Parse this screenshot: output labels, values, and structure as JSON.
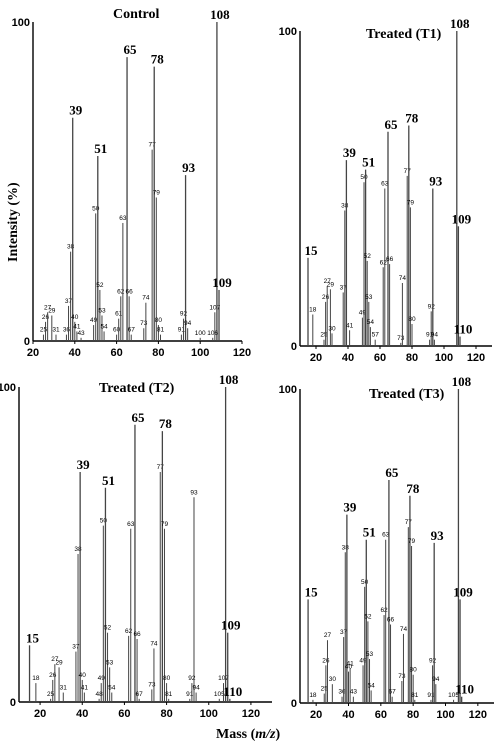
{
  "figure": {
    "ylabel": "Intensity (%)",
    "xlabel": "Mass (m/z)",
    "xlabel_main": "Mass (",
    "xlabel_italic": "m/z",
    "xlabel_close": ")"
  },
  "chart_data": [
    {
      "type": "bar",
      "title": "Control",
      "xlim": [
        20,
        120
      ],
      "ylim": [
        0,
        100
      ],
      "xticks": [
        20,
        40,
        60,
        80,
        100,
        120
      ],
      "yticks": [
        0,
        100
      ],
      "peaks": [
        {
          "mz": 25,
          "intensity": 2,
          "label": "25"
        },
        {
          "mz": 26,
          "intensity": 6,
          "label": "26"
        },
        {
          "mz": 27,
          "intensity": 9,
          "label": "27"
        },
        {
          "mz": 29,
          "intensity": 8,
          "label": "29"
        },
        {
          "mz": 31,
          "intensity": 2,
          "label": "31"
        },
        {
          "mz": 36,
          "intensity": 2,
          "label": "36"
        },
        {
          "mz": 37,
          "intensity": 11,
          "label": "37"
        },
        {
          "mz": 38,
          "intensity": 28,
          "label": "38"
        },
        {
          "mz": 39,
          "intensity": 70,
          "label": "39",
          "major": true
        },
        {
          "mz": 40,
          "intensity": 6,
          "label": "40"
        },
        {
          "mz": 41,
          "intensity": 3,
          "label": "41"
        },
        {
          "mz": 43,
          "intensity": 1,
          "label": "43"
        },
        {
          "mz": 49,
          "intensity": 5,
          "label": "49"
        },
        {
          "mz": 50,
          "intensity": 40,
          "label": "50"
        },
        {
          "mz": 51,
          "intensity": 58,
          "label": "51",
          "major": true
        },
        {
          "mz": 52,
          "intensity": 16,
          "label": "52"
        },
        {
          "mz": 53,
          "intensity": 8,
          "label": "53"
        },
        {
          "mz": 54,
          "intensity": 3,
          "label": "54"
        },
        {
          "mz": 60,
          "intensity": 2,
          "label": "60"
        },
        {
          "mz": 61,
          "intensity": 7,
          "label": "61"
        },
        {
          "mz": 62,
          "intensity": 14,
          "label": "62"
        },
        {
          "mz": 63,
          "intensity": 37,
          "label": "63"
        },
        {
          "mz": 65,
          "intensity": 89,
          "label": "65",
          "major": true
        },
        {
          "mz": 66,
          "intensity": 14,
          "label": "66"
        },
        {
          "mz": 67,
          "intensity": 2,
          "label": "67"
        },
        {
          "mz": 73,
          "intensity": 4,
          "label": "73"
        },
        {
          "mz": 74,
          "intensity": 12,
          "label": "74"
        },
        {
          "mz": 77,
          "intensity": 60,
          "label": "77"
        },
        {
          "mz": 78,
          "intensity": 86,
          "label": "78",
          "major": true
        },
        {
          "mz": 79,
          "intensity": 45,
          "label": "79"
        },
        {
          "mz": 80,
          "intensity": 5,
          "label": "80"
        },
        {
          "mz": 81,
          "intensity": 2,
          "label": "81"
        },
        {
          "mz": 91,
          "intensity": 2,
          "label": "91"
        },
        {
          "mz": 92,
          "intensity": 7,
          "label": "92"
        },
        {
          "mz": 93,
          "intensity": 52,
          "label": "93",
          "major": true
        },
        {
          "mz": 94,
          "intensity": 4,
          "label": "94"
        },
        {
          "mz": 100,
          "intensity": 1,
          "label": "100"
        },
        {
          "mz": 107,
          "intensity": 9,
          "label": "107"
        },
        {
          "mz": 108,
          "intensity": 100,
          "label": "108",
          "major": true
        },
        {
          "mz": 109,
          "intensity": 16,
          "label": "109",
          "major": true
        },
        {
          "mz": 106,
          "intensity": 1,
          "label": "106"
        }
      ]
    },
    {
      "type": "bar",
      "title": "Treated (T1)",
      "xlim": [
        10,
        130
      ],
      "ylim": [
        0,
        100
      ],
      "xticks": [
        20,
        40,
        60,
        80,
        100,
        120
      ],
      "yticks": [
        0,
        100
      ],
      "peaks": [
        {
          "mz": 15,
          "intensity": 28,
          "label": "15",
          "major": true
        },
        {
          "mz": 18,
          "intensity": 10,
          "label": "18"
        },
        {
          "mz": 25,
          "intensity": 2,
          "label": "25"
        },
        {
          "mz": 26,
          "intensity": 14,
          "label": "26"
        },
        {
          "mz": 27,
          "intensity": 19,
          "label": "27"
        },
        {
          "mz": 29,
          "intensity": 18,
          "label": "29"
        },
        {
          "mz": 30,
          "intensity": 4,
          "label": "30"
        },
        {
          "mz": 37,
          "intensity": 17,
          "label": "37"
        },
        {
          "mz": 38,
          "intensity": 43,
          "label": "38"
        },
        {
          "mz": 39,
          "intensity": 59,
          "label": "39",
          "major": true
        },
        {
          "mz": 41,
          "intensity": 5,
          "label": "41"
        },
        {
          "mz": 49,
          "intensity": 9,
          "label": "49"
        },
        {
          "mz": 50,
          "intensity": 52,
          "label": "50"
        },
        {
          "mz": 51,
          "intensity": 56,
          "label": "51",
          "major": true
        },
        {
          "mz": 52,
          "intensity": 27,
          "label": "52"
        },
        {
          "mz": 53,
          "intensity": 14,
          "label": "53"
        },
        {
          "mz": 54,
          "intensity": 6,
          "label": "54"
        },
        {
          "mz": 57,
          "intensity": 2,
          "label": "57"
        },
        {
          "mz": 62,
          "intensity": 25,
          "label": "62"
        },
        {
          "mz": 63,
          "intensity": 50,
          "label": "63"
        },
        {
          "mz": 65,
          "intensity": 68,
          "label": "65",
          "major": true
        },
        {
          "mz": 66,
          "intensity": 26,
          "label": "66"
        },
        {
          "mz": 73,
          "intensity": 1,
          "label": "73"
        },
        {
          "mz": 74,
          "intensity": 20,
          "label": "74"
        },
        {
          "mz": 77,
          "intensity": 54,
          "label": "77"
        },
        {
          "mz": 78,
          "intensity": 70,
          "label": "78",
          "major": true
        },
        {
          "mz": 79,
          "intensity": 44,
          "label": "79"
        },
        {
          "mz": 80,
          "intensity": 7,
          "label": "80"
        },
        {
          "mz": 91,
          "intensity": 2,
          "label": "91"
        },
        {
          "mz": 92,
          "intensity": 11,
          "label": "92"
        },
        {
          "mz": 93,
          "intensity": 50,
          "label": "93",
          "major": true
        },
        {
          "mz": 94,
          "intensity": 2,
          "label": "94"
        },
        {
          "mz": 108,
          "intensity": 100,
          "label": "108",
          "major": true
        },
        {
          "mz": 109,
          "intensity": 38,
          "label": "109",
          "major": true
        },
        {
          "mz": 110,
          "intensity": 3,
          "label": "110",
          "major": true
        }
      ]
    },
    {
      "type": "bar",
      "title": "Treated (T2)",
      "xlim": [
        10,
        130
      ],
      "ylim": [
        0,
        100
      ],
      "xticks": [
        20,
        40,
        60,
        80,
        100,
        120
      ],
      "yticks": [
        0,
        100
      ],
      "peaks": [
        {
          "mz": 15,
          "intensity": 18,
          "label": "15",
          "major": true
        },
        {
          "mz": 18,
          "intensity": 6,
          "label": "18"
        },
        {
          "mz": 25,
          "intensity": 1,
          "label": "25"
        },
        {
          "mz": 26,
          "intensity": 7,
          "label": "26"
        },
        {
          "mz": 27,
          "intensity": 12,
          "label": "27"
        },
        {
          "mz": 29,
          "intensity": 11,
          "label": "29"
        },
        {
          "mz": 31,
          "intensity": 3,
          "label": "31"
        },
        {
          "mz": 37,
          "intensity": 16,
          "label": "37"
        },
        {
          "mz": 38,
          "intensity": 47,
          "label": "38"
        },
        {
          "mz": 39,
          "intensity": 73,
          "label": "39",
          "major": true
        },
        {
          "mz": 40,
          "intensity": 7,
          "label": "40"
        },
        {
          "mz": 41,
          "intensity": 3,
          "label": "41"
        },
        {
          "mz": 48,
          "intensity": 1,
          "label": "48"
        },
        {
          "mz": 49,
          "intensity": 6,
          "label": "49"
        },
        {
          "mz": 50,
          "intensity": 56,
          "label": "50"
        },
        {
          "mz": 51,
          "intensity": 68,
          "label": "51",
          "major": true
        },
        {
          "mz": 52,
          "intensity": 22,
          "label": "52"
        },
        {
          "mz": 53,
          "intensity": 11,
          "label": "53"
        },
        {
          "mz": 54,
          "intensity": 3,
          "label": "54"
        },
        {
          "mz": 62,
          "intensity": 21,
          "label": "62"
        },
        {
          "mz": 63,
          "intensity": 55,
          "label": "63"
        },
        {
          "mz": 65,
          "intensity": 88,
          "label": "65",
          "major": true
        },
        {
          "mz": 66,
          "intensity": 20,
          "label": "66"
        },
        {
          "mz": 67,
          "intensity": 1,
          "label": "67"
        },
        {
          "mz": 73,
          "intensity": 4,
          "label": "73"
        },
        {
          "mz": 74,
          "intensity": 17,
          "label": "74"
        },
        {
          "mz": 77,
          "intensity": 73,
          "label": "77"
        },
        {
          "mz": 78,
          "intensity": 86,
          "label": "78",
          "major": true
        },
        {
          "mz": 79,
          "intensity": 55,
          "label": "79"
        },
        {
          "mz": 80,
          "intensity": 6,
          "label": "80"
        },
        {
          "mz": 81,
          "intensity": 1,
          "label": "81"
        },
        {
          "mz": 91,
          "intensity": 1,
          "label": "91"
        },
        {
          "mz": 92,
          "intensity": 6,
          "label": "92"
        },
        {
          "mz": 93,
          "intensity": 65,
          "label": "93"
        },
        {
          "mz": 94,
          "intensity": 3,
          "label": "94"
        },
        {
          "mz": 105,
          "intensity": 1,
          "label": "105"
        },
        {
          "mz": 107,
          "intensity": 6,
          "label": "107"
        },
        {
          "mz": 108,
          "intensity": 100,
          "label": "108",
          "major": true
        },
        {
          "mz": 109,
          "intensity": 22,
          "label": "109",
          "major": true
        },
        {
          "mz": 110,
          "intensity": 1,
          "label": "110",
          "major": true
        }
      ]
    },
    {
      "type": "bar",
      "title": "Treated (T3)",
      "xlim": [
        10,
        130
      ],
      "ylim": [
        0,
        100
      ],
      "xticks": [
        20,
        40,
        60,
        80,
        100,
        120
      ],
      "yticks": [
        0,
        100
      ],
      "peaks": [
        {
          "mz": 15,
          "intensity": 33,
          "label": "15",
          "major": true
        },
        {
          "mz": 18,
          "intensity": 1,
          "label": "18"
        },
        {
          "mz": 25,
          "intensity": 3,
          "label": "25"
        },
        {
          "mz": 26,
          "intensity": 12,
          "label": "26"
        },
        {
          "mz": 27,
          "intensity": 20,
          "label": "27"
        },
        {
          "mz": 30,
          "intensity": 6,
          "label": "30"
        },
        {
          "mz": 36,
          "intensity": 2,
          "label": "36"
        },
        {
          "mz": 37,
          "intensity": 21,
          "label": "37"
        },
        {
          "mz": 38,
          "intensity": 48,
          "label": "38"
        },
        {
          "mz": 39,
          "intensity": 60,
          "label": "39",
          "major": true
        },
        {
          "mz": 40,
          "intensity": 10,
          "label": "40"
        },
        {
          "mz": 41,
          "intensity": 11,
          "label": "41"
        },
        {
          "mz": 43,
          "intensity": 2,
          "label": "43"
        },
        {
          "mz": 49,
          "intensity": 12,
          "label": "49"
        },
        {
          "mz": 50,
          "intensity": 37,
          "label": "50"
        },
        {
          "mz": 51,
          "intensity": 52,
          "label": "51",
          "major": true
        },
        {
          "mz": 52,
          "intensity": 26,
          "label": "52"
        },
        {
          "mz": 53,
          "intensity": 14,
          "label": "53"
        },
        {
          "mz": 54,
          "intensity": 4,
          "label": "54"
        },
        {
          "mz": 62,
          "intensity": 28,
          "label": "62"
        },
        {
          "mz": 63,
          "intensity": 52,
          "label": "63"
        },
        {
          "mz": 65,
          "intensity": 71,
          "label": "65",
          "major": true
        },
        {
          "mz": 66,
          "intensity": 25,
          "label": "66"
        },
        {
          "mz": 67,
          "intensity": 2,
          "label": "67"
        },
        {
          "mz": 73,
          "intensity": 7,
          "label": "73"
        },
        {
          "mz": 74,
          "intensity": 22,
          "label": "74"
        },
        {
          "mz": 77,
          "intensity": 56,
          "label": "77"
        },
        {
          "mz": 78,
          "intensity": 66,
          "label": "78",
          "major": true
        },
        {
          "mz": 79,
          "intensity": 50,
          "label": "79"
        },
        {
          "mz": 80,
          "intensity": 9,
          "label": "80"
        },
        {
          "mz": 81,
          "intensity": 1,
          "label": "81"
        },
        {
          "mz": 91,
          "intensity": 1,
          "label": "91"
        },
        {
          "mz": 92,
          "intensity": 12,
          "label": "92"
        },
        {
          "mz": 93,
          "intensity": 51,
          "label": "93",
          "major": true
        },
        {
          "mz": 94,
          "intensity": 6,
          "label": "94"
        },
        {
          "mz": 105,
          "intensity": 1,
          "label": "105"
        },
        {
          "mz": 108,
          "intensity": 100,
          "label": "108",
          "major": true
        },
        {
          "mz": 109,
          "intensity": 33,
          "label": "109",
          "major": true
        },
        {
          "mz": 110,
          "intensity": 2,
          "label": "110",
          "major": true
        }
      ]
    }
  ]
}
